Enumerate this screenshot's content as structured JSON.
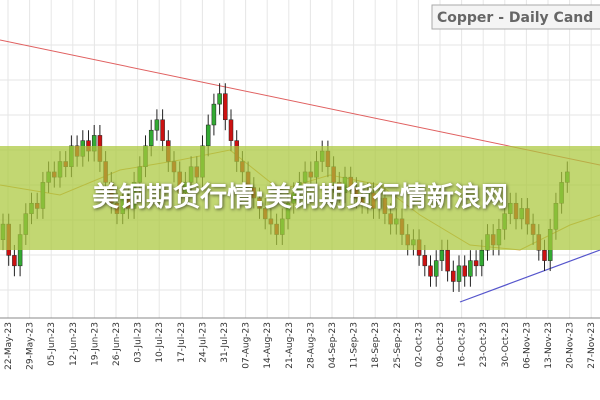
{
  "chart_data": {
    "type": "candlestick",
    "title": "Copper - Daily Cand",
    "banner": "美铜期货行情:美铜期货行情新浪网",
    "xticks": [
      "22-May-23",
      "29-May-23",
      "05-Jun-23",
      "12-Jun-23",
      "19-Jun-23",
      "26-Jun-23",
      "03-Jul-23",
      "10-Jul-23",
      "17-Jul-23",
      "24-Jul-23",
      "31-Jul-23",
      "07-Aug-23",
      "14-Aug-23",
      "21-Aug-23",
      "28-Aug-23",
      "04-Sep-23",
      "11-Sep-23",
      "18-Sep-23",
      "25-Sep-23",
      "02-Oct-23",
      "09-Oct-23",
      "16-Oct-23",
      "23-Oct-23",
      "30-Oct-23",
      "06-Nov-23",
      "13-Nov-23",
      "20-Nov-23",
      "27-Nov-23"
    ],
    "ylim": [
      3.5,
      4.1
    ],
    "up_color": "#33aa33",
    "down_color": "#cc1111",
    "open": [
      3.65,
      3.68,
      3.62,
      3.6,
      3.66,
      3.7,
      3.72,
      3.71,
      3.76,
      3.78,
      3.77,
      3.8,
      3.79,
      3.83,
      3.81,
      3.84,
      3.82,
      3.85,
      3.8,
      3.76,
      3.72,
      3.7,
      3.73,
      3.71,
      3.76,
      3.79,
      3.83,
      3.86,
      3.88,
      3.84,
      3.8,
      3.78,
      3.74,
      3.76,
      3.79,
      3.77,
      3.83,
      3.87,
      3.91,
      3.93,
      3.88,
      3.84,
      3.8,
      3.78,
      3.75,
      3.73,
      3.71,
      3.69,
      3.68,
      3.66,
      3.69,
      3.72,
      3.74,
      3.76,
      3.78,
      3.77,
      3.8,
      3.82,
      3.79,
      3.76,
      3.74,
      3.77,
      3.75,
      3.73,
      3.72,
      3.74,
      3.71,
      3.73,
      3.7,
      3.68,
      3.69,
      3.66,
      3.64,
      3.65,
      3.62,
      3.6,
      3.58,
      3.61,
      3.63,
      3.59,
      3.57,
      3.6,
      3.58,
      3.61,
      3.6,
      3.63,
      3.66,
      3.64,
      3.67,
      3.7,
      3.72,
      3.69,
      3.71,
      3.68,
      3.66,
      3.63,
      3.61,
      3.67,
      3.72,
      3.76
    ],
    "high": [
      3.7,
      3.7,
      3.64,
      3.68,
      3.72,
      3.74,
      3.74,
      3.78,
      3.8,
      3.8,
      3.82,
      3.82,
      3.85,
      3.85,
      3.86,
      3.86,
      3.87,
      3.87,
      3.82,
      3.78,
      3.74,
      3.75,
      3.75,
      3.78,
      3.81,
      3.85,
      3.88,
      3.9,
      3.9,
      3.86,
      3.82,
      3.8,
      3.78,
      3.81,
      3.81,
      3.85,
      3.89,
      3.93,
      3.95,
      3.95,
      3.9,
      3.86,
      3.82,
      3.8,
      3.77,
      3.75,
      3.73,
      3.71,
      3.7,
      3.71,
      3.74,
      3.76,
      3.78,
      3.8,
      3.8,
      3.82,
      3.84,
      3.84,
      3.81,
      3.78,
      3.79,
      3.79,
      3.77,
      3.75,
      3.76,
      3.76,
      3.75,
      3.75,
      3.72,
      3.71,
      3.71,
      3.68,
      3.67,
      3.67,
      3.64,
      3.62,
      3.63,
      3.65,
      3.65,
      3.61,
      3.62,
      3.62,
      3.63,
      3.63,
      3.65,
      3.68,
      3.68,
      3.69,
      3.72,
      3.74,
      3.74,
      3.73,
      3.73,
      3.7,
      3.68,
      3.65,
      3.69,
      3.74,
      3.78,
      3.8
    ],
    "low": [
      3.63,
      3.6,
      3.58,
      3.58,
      3.64,
      3.68,
      3.69,
      3.69,
      3.74,
      3.75,
      3.75,
      3.77,
      3.77,
      3.79,
      3.79,
      3.8,
      3.8,
      3.78,
      3.74,
      3.7,
      3.68,
      3.68,
      3.69,
      3.69,
      3.74,
      3.77,
      3.81,
      3.84,
      3.82,
      3.78,
      3.76,
      3.72,
      3.72,
      3.74,
      3.75,
      3.75,
      3.81,
      3.85,
      3.89,
      3.86,
      3.82,
      3.78,
      3.76,
      3.73,
      3.71,
      3.69,
      3.67,
      3.66,
      3.64,
      3.64,
      3.67,
      3.7,
      3.72,
      3.74,
      3.75,
      3.75,
      3.78,
      3.77,
      3.74,
      3.72,
      3.72,
      3.73,
      3.71,
      3.7,
      3.7,
      3.69,
      3.69,
      3.68,
      3.66,
      3.66,
      3.64,
      3.62,
      3.62,
      3.6,
      3.58,
      3.56,
      3.56,
      3.59,
      3.57,
      3.55,
      3.55,
      3.56,
      3.56,
      3.58,
      3.58,
      3.61,
      3.62,
      3.62,
      3.65,
      3.68,
      3.67,
      3.67,
      3.66,
      3.64,
      3.61,
      3.59,
      3.59,
      3.65,
      3.7,
      3.74
    ],
    "close": [
      3.68,
      3.62,
      3.6,
      3.66,
      3.7,
      3.72,
      3.71,
      3.76,
      3.78,
      3.77,
      3.8,
      3.79,
      3.83,
      3.81,
      3.84,
      3.82,
      3.85,
      3.8,
      3.76,
      3.72,
      3.7,
      3.73,
      3.71,
      3.76,
      3.79,
      3.83,
      3.86,
      3.88,
      3.84,
      3.8,
      3.78,
      3.74,
      3.76,
      3.79,
      3.77,
      3.83,
      3.87,
      3.91,
      3.93,
      3.88,
      3.84,
      3.8,
      3.78,
      3.75,
      3.73,
      3.71,
      3.69,
      3.68,
      3.66,
      3.69,
      3.72,
      3.74,
      3.76,
      3.78,
      3.77,
      3.8,
      3.82,
      3.79,
      3.76,
      3.74,
      3.77,
      3.75,
      3.73,
      3.72,
      3.74,
      3.71,
      3.73,
      3.7,
      3.68,
      3.69,
      3.66,
      3.64,
      3.65,
      3.62,
      3.6,
      3.58,
      3.61,
      3.63,
      3.59,
      3.57,
      3.6,
      3.58,
      3.61,
      3.6,
      3.63,
      3.66,
      3.64,
      3.67,
      3.7,
      3.72,
      3.69,
      3.71,
      3.68,
      3.66,
      3.63,
      3.61,
      3.67,
      3.72,
      3.76,
      3.78
    ]
  }
}
